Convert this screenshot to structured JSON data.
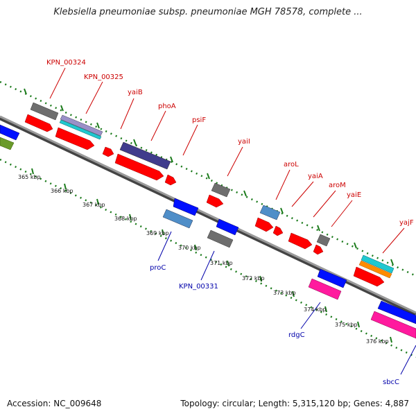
{
  "title": "Klebsiella pneumoniae subsp. pneumoniae MGH 78578, complete ...",
  "accession": "Accession: NC_009648",
  "topology": "Topology: circular; Length: 5,315,120 bp; Genes: 4,887",
  "colors": {
    "backbone": "#7a7a7a",
    "forward_label": "#cc0000",
    "reverse_label": "#0000aa",
    "tick_marks": "#1a7a1a",
    "red": "#ff0000",
    "gray": "#6e6e6e",
    "navy": "#403c8c",
    "lavender": "#9a90c8",
    "cyan": "#20c8d0",
    "orange": "#ff8c00",
    "blue": "#0010ff",
    "steel": "#4f8ec8",
    "pink": "#ff1a9e",
    "olive": "#6a9a2a"
  },
  "ticks": [
    "365 kbp",
    "366 kbp",
    "367 kbp",
    "368 kbp",
    "369 kbp",
    "370 kbp",
    "371 kbp",
    "372 kbp",
    "373 kbp",
    "374 kbp",
    "375 kbp",
    "376 kbp"
  ],
  "forward_labels": [
    "KPN_00324",
    "KPN_00325",
    "yaiB",
    "phoA",
    "psiF",
    "yaiI",
    "aroL",
    "yaiA",
    "aroM",
    "yaiE",
    "yajF"
  ],
  "reverse_labels": [
    "proC",
    "KPN_00331",
    "rdgC",
    "sbcC"
  ]
}
